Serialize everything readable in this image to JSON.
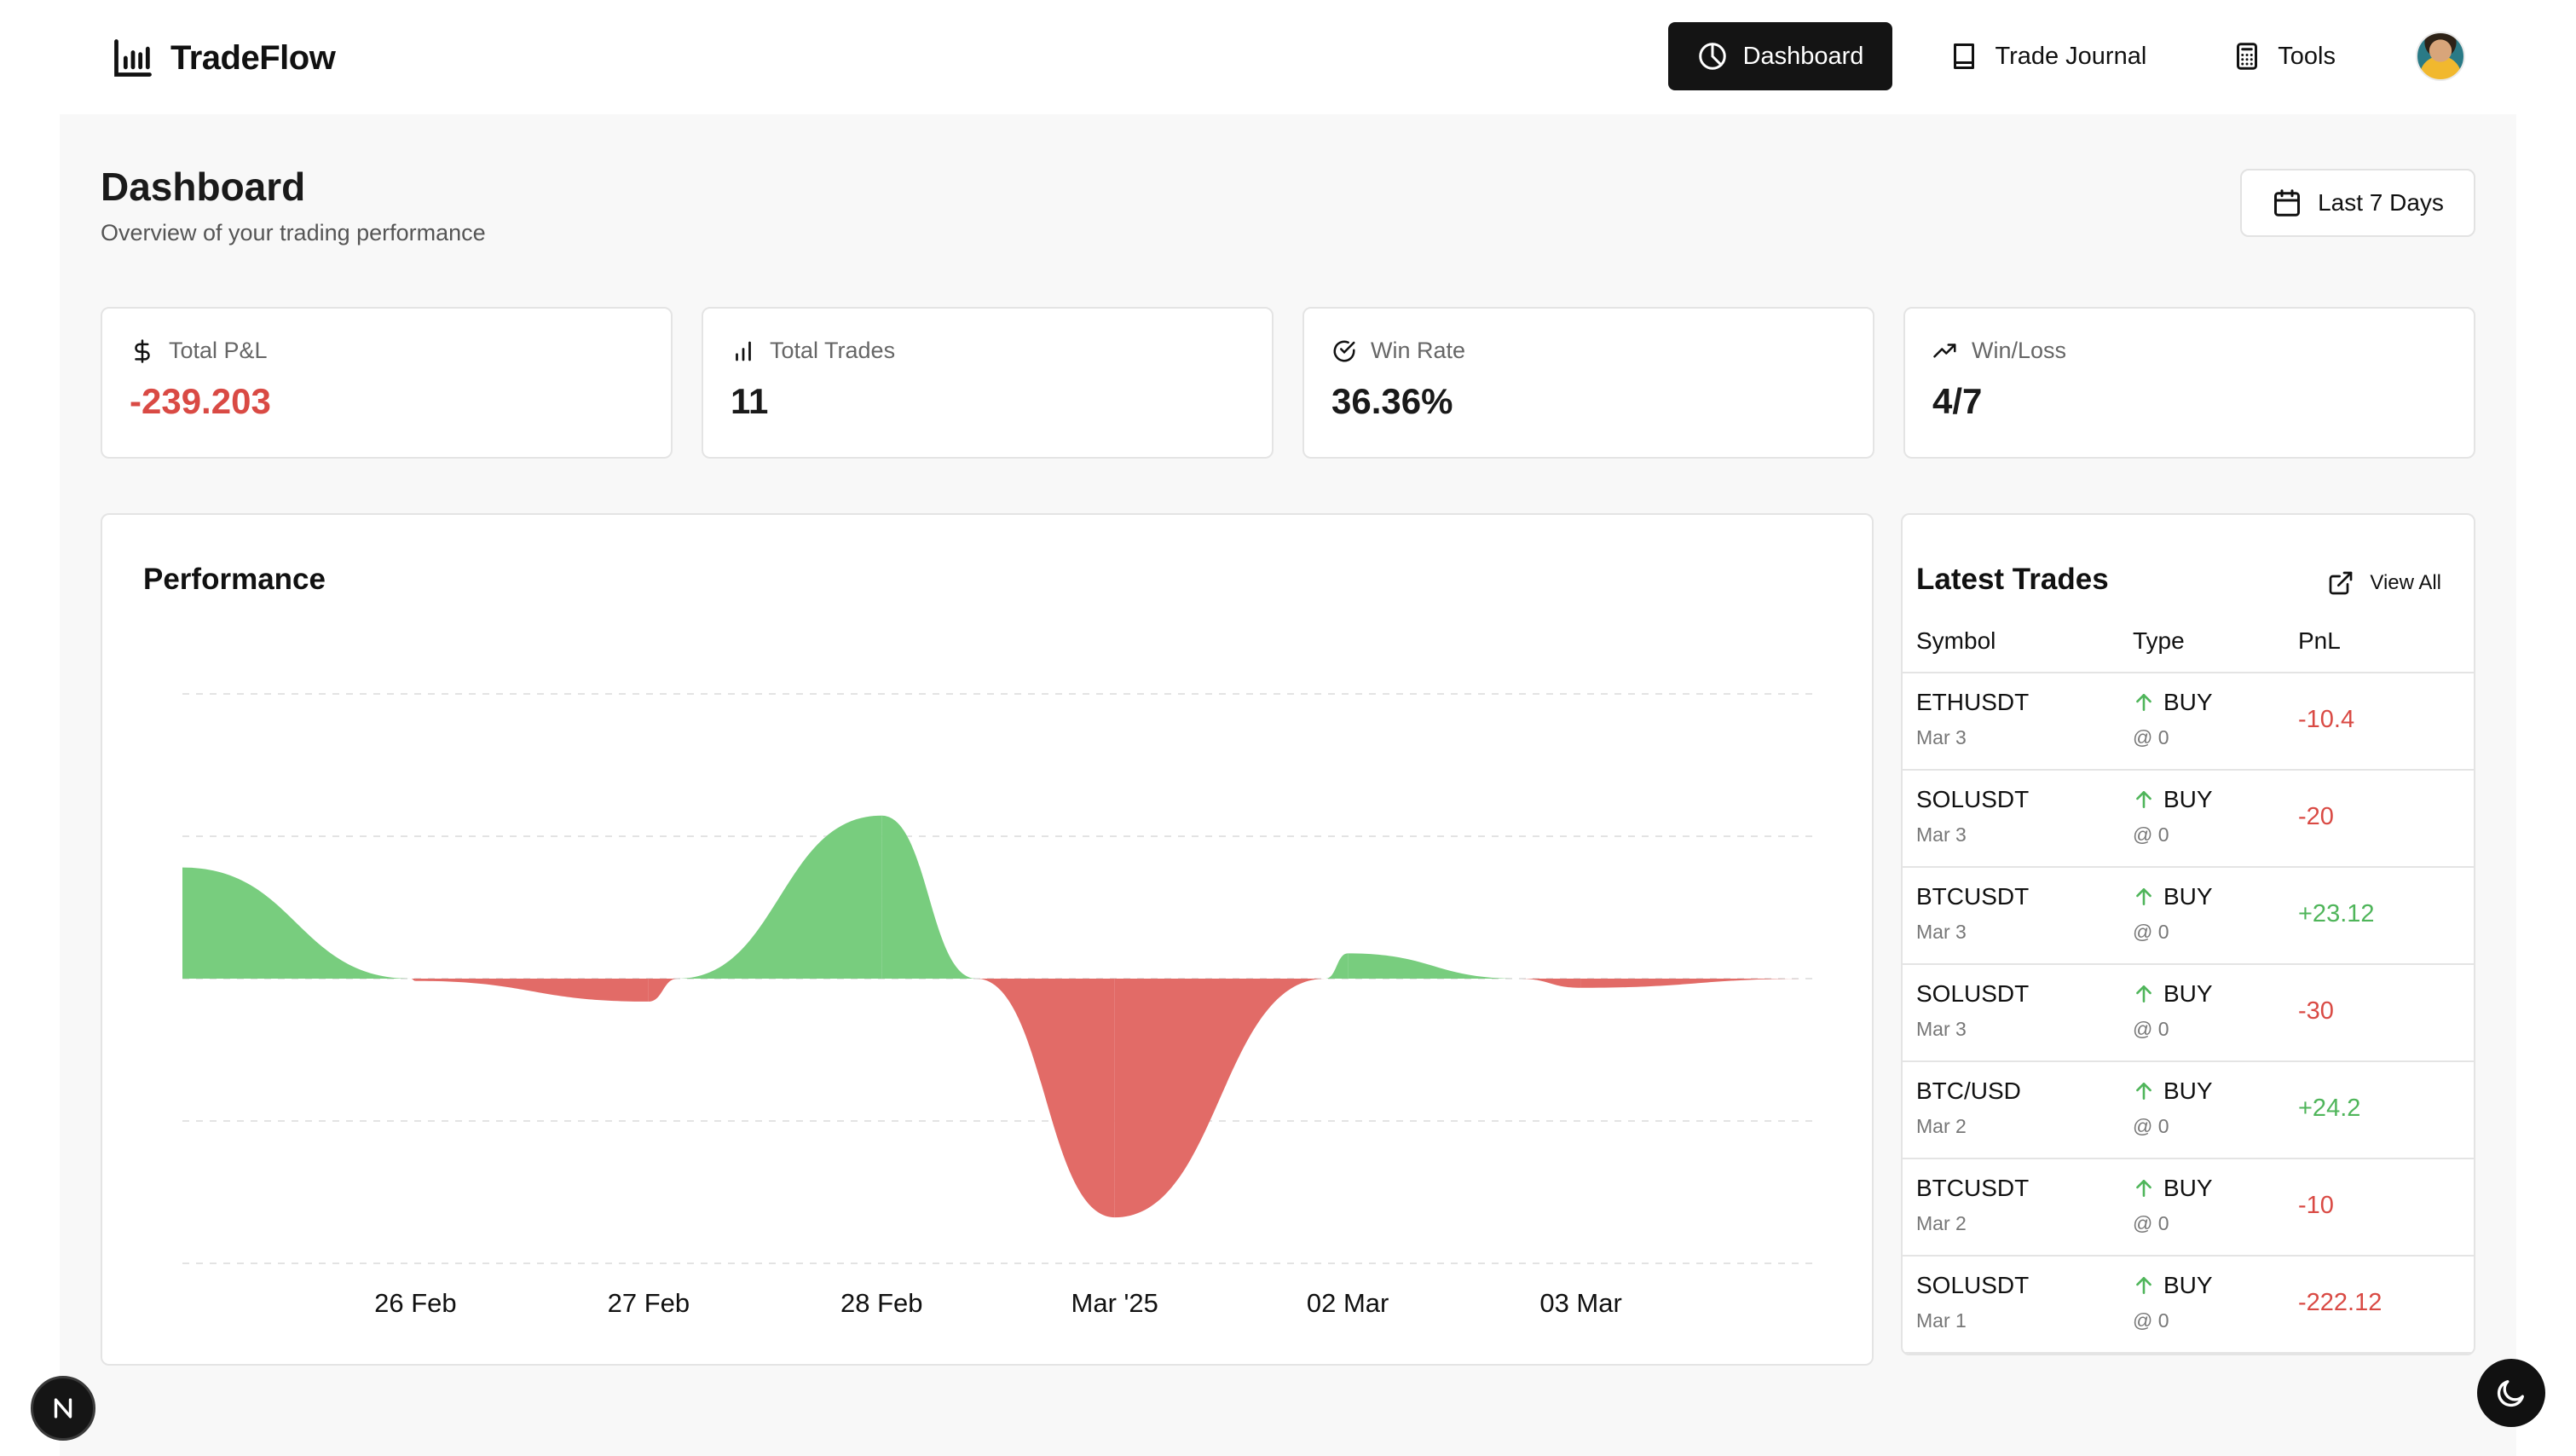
{
  "app": {
    "brand": "TradeFlow",
    "brand_icon": "bar-chart-icon"
  },
  "nav": {
    "items": [
      {
        "label": "Dashboard",
        "icon": "pie-chart-icon",
        "active": true
      },
      {
        "label": "Trade Journal",
        "icon": "book-icon",
        "active": false
      },
      {
        "label": "Tools",
        "icon": "calculator-icon",
        "active": false
      }
    ],
    "avatar_icon": "user-avatar"
  },
  "header": {
    "title": "Dashboard",
    "subtitle": "Overview of your trading performance",
    "range_label": "Last 7 Days"
  },
  "stats": [
    {
      "label": "Total P&L",
      "value": "-239.203",
      "icon": "dollar-icon",
      "tone": "negative"
    },
    {
      "label": "Total Trades",
      "value": "11",
      "icon": "bar-chart-icon",
      "tone": "neutral"
    },
    {
      "label": "Win Rate",
      "value": "36.36%",
      "icon": "check-circle-icon",
      "tone": "neutral"
    },
    {
      "label": "Win/Loss",
      "value": "4/7",
      "icon": "trending-up-icon",
      "tone": "neutral"
    }
  ],
  "performance": {
    "title": "Performance"
  },
  "chart_data": {
    "type": "area",
    "title": "Performance",
    "xlabel": "",
    "ylabel": "",
    "x_ticks": [
      "26 Feb",
      "27 Feb",
      "28 Feb",
      "Mar '25",
      "02 Mar",
      "03 Mar"
    ],
    "x": [
      -1,
      0,
      1,
      2,
      3,
      4,
      5,
      6
    ],
    "values": [
      24.2,
      -0.5,
      -5,
      35.5,
      -52,
      5.5,
      -2,
      0
    ],
    "ylim": [
      -62,
      62
    ],
    "grid": true,
    "colors": {
      "positive": "#78cd7e",
      "negative": "#e26b67"
    }
  },
  "trades": {
    "title": "Latest Trades",
    "view_all": "View All",
    "columns": [
      "Symbol",
      "Type",
      "PnL"
    ],
    "rows": [
      {
        "symbol": "ETHUSDT",
        "date": "Mar 3",
        "type": "BUY",
        "price": "@ 0",
        "pnl": "-10.4",
        "tone": "neg"
      },
      {
        "symbol": "SOLUSDT",
        "date": "Mar 3",
        "type": "BUY",
        "price": "@ 0",
        "pnl": "-20",
        "tone": "neg"
      },
      {
        "symbol": "BTCUSDT",
        "date": "Mar 3",
        "type": "BUY",
        "price": "@ 0",
        "pnl": "+23.12",
        "tone": "pos"
      },
      {
        "symbol": "SOLUSDT",
        "date": "Mar 3",
        "type": "BUY",
        "price": "@ 0",
        "pnl": "-30",
        "tone": "neg"
      },
      {
        "symbol": "BTC/USD",
        "date": "Mar 2",
        "type": "BUY",
        "price": "@ 0",
        "pnl": "+24.2",
        "tone": "pos"
      },
      {
        "symbol": "BTCUSDT",
        "date": "Mar 2",
        "type": "BUY",
        "price": "@ 0",
        "pnl": "-10",
        "tone": "neg"
      },
      {
        "symbol": "SOLUSDT",
        "date": "Mar 1",
        "type": "BUY",
        "price": "@ 0",
        "pnl": "-222.12",
        "tone": "neg"
      }
    ]
  },
  "footer": {
    "framework_badge": "N",
    "theme_icon": "moon-icon"
  }
}
